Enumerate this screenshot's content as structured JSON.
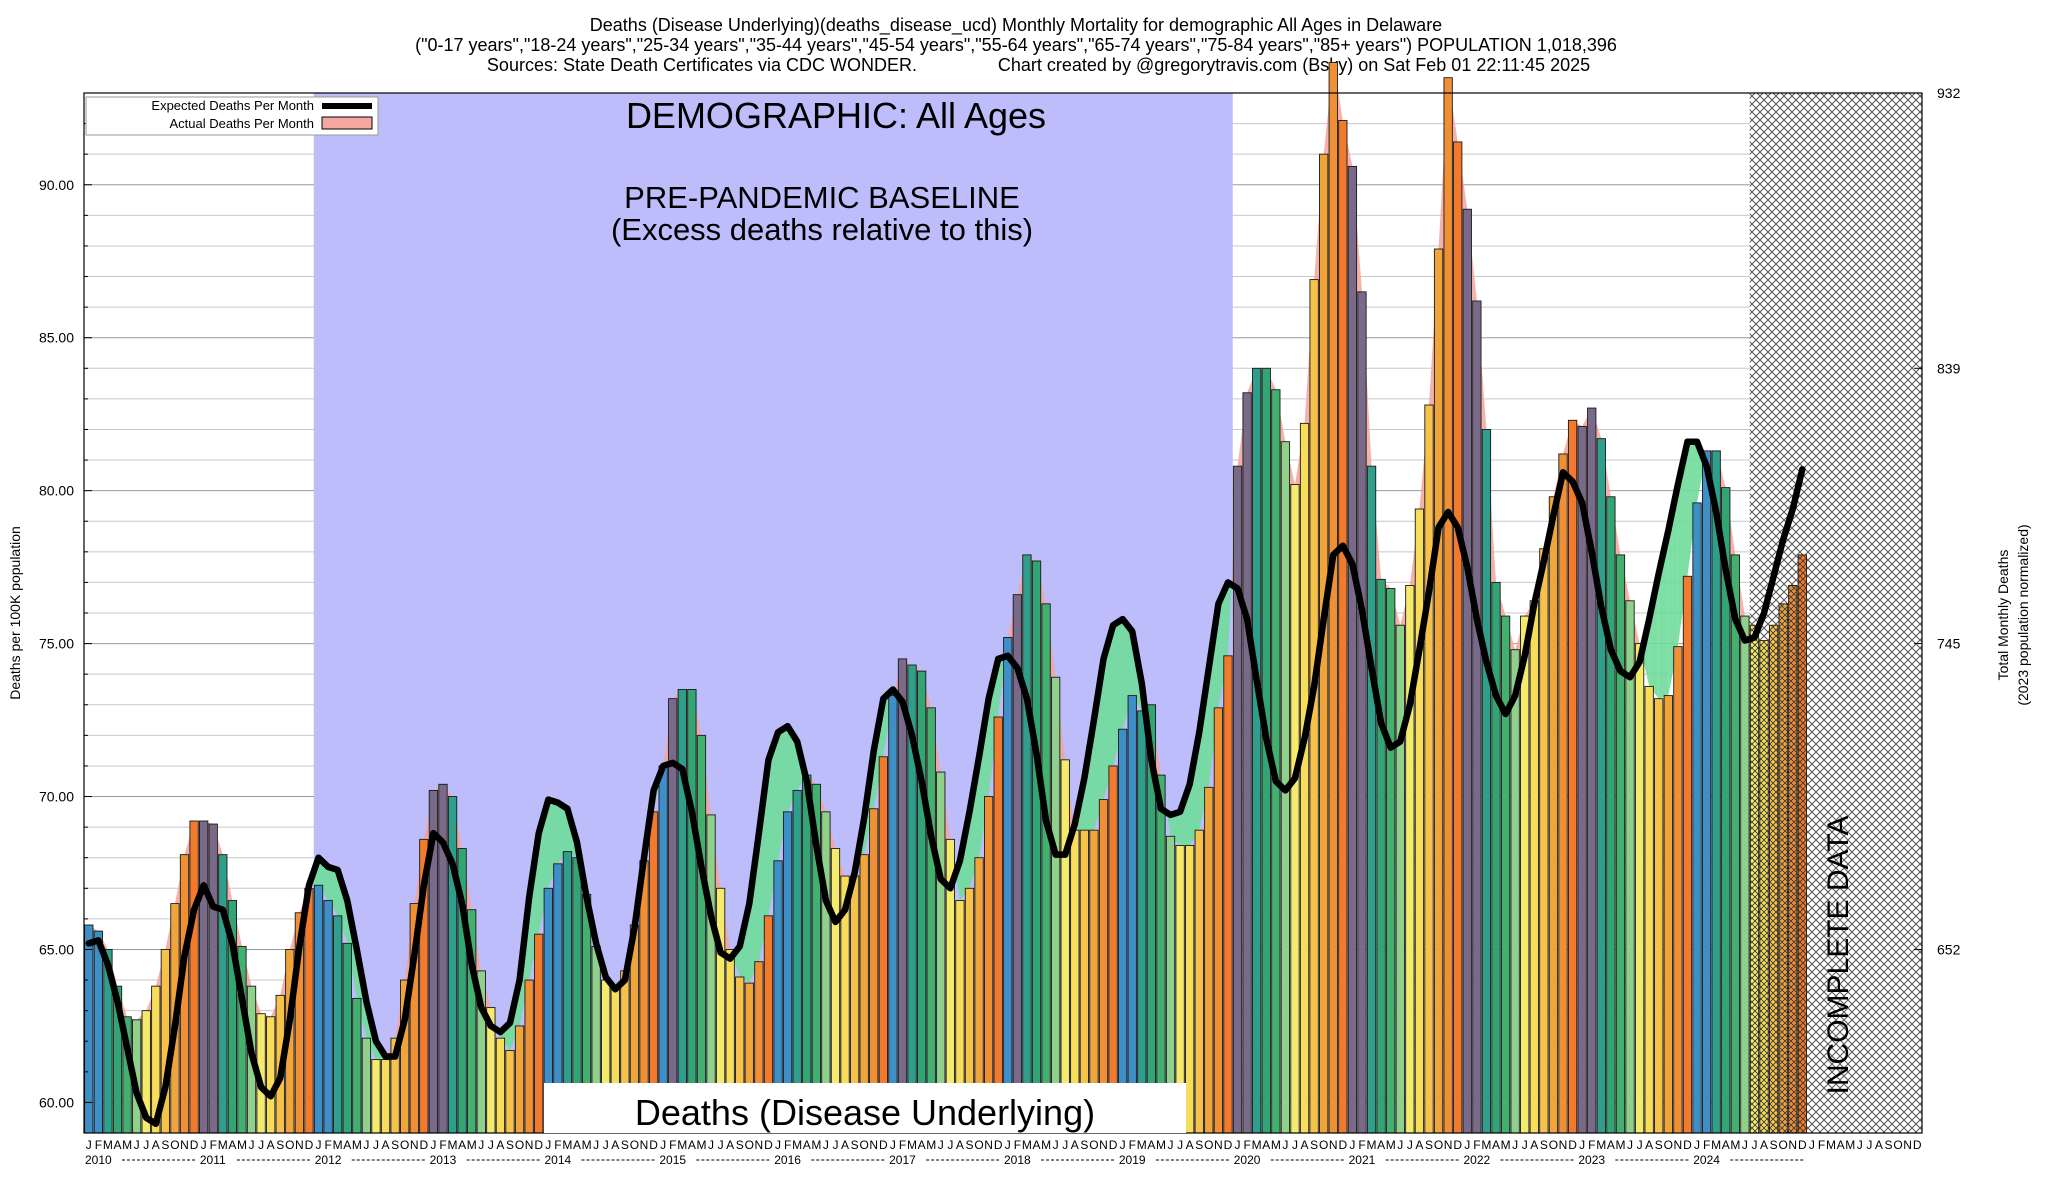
{
  "chart_data": {
    "type": "bar",
    "title_lines": [
      "Deaths (Disease Underlying)(deaths_disease_ucd) Monthly Mortality for demographic All Ages in Delaware",
      "(\"0-17 years\",\"18-24 years\",\"25-34 years\",\"35-44 years\",\"45-54 years\",\"55-64 years\",\"65-74 years\",\"75-84 years\",\"85+ years\") POPULATION 1,018,396",
      "Sources: State Death Certificates via CDC WONDER.",
      "Chart created by @gregorytravis.com (Bsky) on Sat Feb 01 22:11:45 2025"
    ],
    "ylabel": "Deaths per 100K population",
    "y2label_lines": [
      "Total Monthly Deaths",
      "(2023 population normalized)"
    ],
    "ylim": [
      59,
      93
    ],
    "yticks": [
      "60.00",
      "65.00",
      "70.00",
      "75.00",
      "80.00",
      "85.00",
      "90.00"
    ],
    "yticks_values": [
      60,
      65,
      70,
      75,
      80,
      85,
      90
    ],
    "y2ticks": [
      "652",
      "745",
      "839",
      "932"
    ],
    "y2ticks_values": [
      65,
      75,
      84,
      93
    ],
    "month_letters": [
      "J",
      "F",
      "M",
      "A",
      "M",
      "J",
      "J",
      "A",
      "S",
      "O",
      "N",
      "D"
    ],
    "years": [
      "2010",
      "2011",
      "2012",
      "2013",
      "2014",
      "2015",
      "2016",
      "2017",
      "2018",
      "2019",
      "2020",
      "2021",
      "2022",
      "2023",
      "2024"
    ],
    "legend": [
      {
        "label": "Expected Deaths Per Month",
        "color": "#000000"
      },
      {
        "label": "Actual Deaths Per Month",
        "color": "#f4a8a0"
      }
    ],
    "baseline_region": {
      "label": "PRE-PANDEMIC BASELINE",
      "sublabel": "(Excess deaths relative to this)",
      "start": "2012-01",
      "end": "2019-12",
      "color": "#bdbdfb"
    },
    "demographic_label": "DEMOGRAPHIC: All Ages",
    "metric_label": "Deaths (Disease Underlying)",
    "incomplete_label": "INCOMPLETE DATA",
    "incomplete_start": "2024-07",
    "actual": [
      65.8,
      65.6,
      65.0,
      63.8,
      62.8,
      62.7,
      63.0,
      63.8,
      65.0,
      66.5,
      68.1,
      69.2,
      69.2,
      69.1,
      68.1,
      66.6,
      65.1,
      63.8,
      62.9,
      62.8,
      63.5,
      65.0,
      66.2,
      67.0,
      67.1,
      66.6,
      66.1,
      65.2,
      63.4,
      62.1,
      61.4,
      61.4,
      62.1,
      64.0,
      66.5,
      68.6,
      70.2,
      70.4,
      70.0,
      68.3,
      66.3,
      64.3,
      63.1,
      62.1,
      61.7,
      62.5,
      64.0,
      65.5,
      67.0,
      67.8,
      68.2,
      68.0,
      66.8,
      65.1,
      64.0,
      63.8,
      64.3,
      65.8,
      67.9,
      69.5,
      71.0,
      73.2,
      73.5,
      73.5,
      72.0,
      69.4,
      67.0,
      65.0,
      64.1,
      63.9,
      64.6,
      66.1,
      67.9,
      69.5,
      70.2,
      70.7,
      70.4,
      69.5,
      68.3,
      67.4,
      67.4,
      68.1,
      69.6,
      71.3,
      73.3,
      74.5,
      74.3,
      74.1,
      72.9,
      70.8,
      68.6,
      66.6,
      67.0,
      68.0,
      70.0,
      72.6,
      75.2,
      76.6,
      77.9,
      77.7,
      76.3,
      73.9,
      71.2,
      68.9,
      68.9,
      68.9,
      69.9,
      71.0,
      72.2,
      73.3,
      72.8,
      73.0,
      70.7,
      68.7,
      68.4,
      68.4,
      68.9,
      70.3,
      72.9,
      74.6,
      80.8,
      83.2,
      84.0,
      84.0,
      83.3,
      81.6,
      80.2,
      82.2,
      86.9,
      91.0,
      94.0,
      92.1,
      90.6,
      86.5,
      80.8,
      77.1,
      76.8,
      75.6,
      76.9,
      79.4,
      82.8,
      87.9,
      93.5,
      91.4,
      89.2,
      86.2,
      82.0,
      77.0,
      75.9,
      74.8,
      75.9,
      76.4,
      78.1,
      79.8,
      81.2,
      82.3,
      82.1,
      82.7,
      81.7,
      79.8,
      77.9,
      76.4,
      75.0,
      73.6,
      73.2,
      73.3,
      74.9,
      77.2,
      79.6,
      81.3,
      81.3,
      80.1,
      77.9,
      75.9,
      75.6,
      75.1,
      75.6,
      76.3,
      76.9,
      77.9
    ],
    "expected": [
      65.2,
      65.3,
      64.5,
      63.3,
      61.8,
      60.3,
      59.5,
      59.3,
      60.5,
      62.5,
      64.8,
      66.3,
      67.1,
      66.4,
      66.3,
      65.2,
      63.4,
      61.6,
      60.5,
      60.2,
      60.8,
      62.7,
      65.1,
      67.1,
      68.0,
      67.7,
      67.6,
      66.6,
      65.0,
      63.3,
      62.0,
      61.5,
      61.5,
      62.7,
      64.8,
      67.1,
      68.8,
      68.5,
      67.8,
      66.5,
      64.5,
      63.1,
      62.5,
      62.3,
      62.6,
      64.0,
      66.7,
      68.8,
      69.9,
      69.8,
      69.6,
      68.5,
      66.7,
      65.2,
      64.1,
      63.7,
      64.0,
      65.7,
      68.0,
      70.2,
      71.0,
      71.1,
      70.9,
      69.5,
      67.7,
      66.1,
      64.9,
      64.7,
      65.1,
      66.5,
      68.8,
      71.2,
      72.1,
      72.3,
      71.8,
      70.5,
      68.4,
      66.6,
      65.9,
      66.3,
      67.5,
      69.3,
      71.5,
      73.2,
      73.5,
      73.1,
      72.0,
      70.5,
      68.7,
      67.3,
      67.0,
      67.9,
      69.5,
      71.3,
      73.2,
      74.5,
      74.6,
      74.2,
      73.2,
      71.4,
      69.2,
      68.1,
      68.1,
      69.1,
      70.6,
      72.5,
      74.5,
      75.6,
      75.8,
      75.4,
      73.7,
      71.2,
      69.6,
      69.4,
      69.5,
      70.4,
      72.1,
      74.2,
      76.3,
      77.0,
      76.8,
      75.8,
      73.8,
      71.9,
      70.5,
      70.2,
      70.6,
      71.9,
      73.6,
      75.8,
      77.9,
      78.2,
      77.6,
      76.1,
      74.2,
      72.4,
      71.6,
      71.8,
      73.0,
      74.8,
      76.7,
      78.8,
      79.3,
      78.8,
      77.5,
      75.8,
      74.4,
      73.3,
      72.7,
      73.3,
      74.6,
      76.3,
      77.7,
      79.2,
      80.6,
      80.3,
      79.6,
      78.0,
      76.2,
      74.8,
      74.1,
      73.9,
      74.4,
      75.8,
      77.3,
      78.7,
      80.2,
      81.6,
      81.6,
      80.8,
      79.3,
      77.4,
      75.8,
      75.1,
      75.2,
      76.0,
      77.2,
      78.4,
      79.4,
      80.7
    ]
  }
}
